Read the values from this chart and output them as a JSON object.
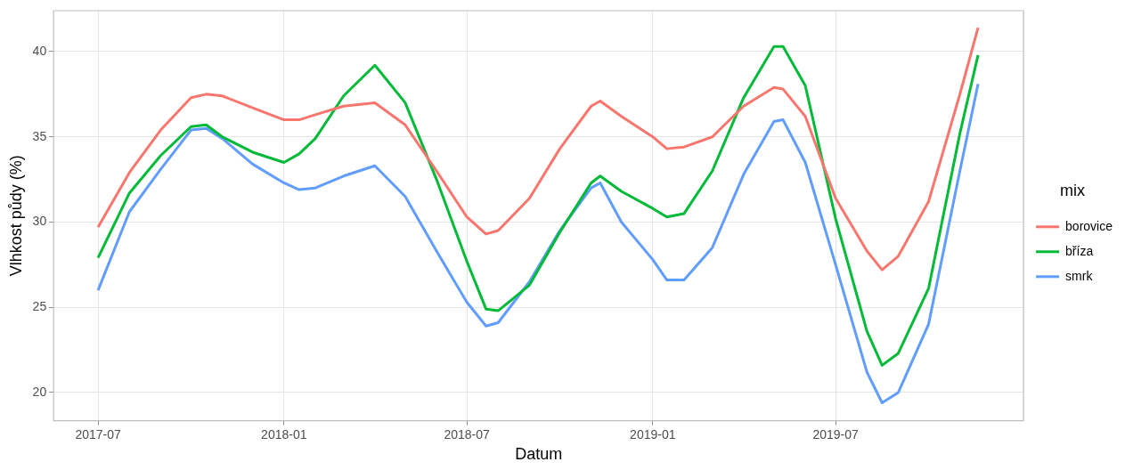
{
  "chart_data": {
    "type": "line",
    "xlabel": "Datum",
    "ylabel": "Vlhkost půdy (%)",
    "legend_title": "mix",
    "legend": "right",
    "grid": true,
    "marker": "none",
    "line_style": "solid",
    "x": [
      "2017-07-01",
      "2017-08-01",
      "2017-09-01",
      "2017-10-01",
      "2017-10-16",
      "2017-11-01",
      "2017-12-01",
      "2018-01-01",
      "2018-01-16",
      "2018-02-01",
      "2018-03-01",
      "2018-04-01",
      "2018-05-01",
      "2018-06-01",
      "2018-07-01",
      "2018-07-20",
      "2018-08-01",
      "2018-09-01",
      "2018-10-01",
      "2018-11-01",
      "2018-11-10",
      "2018-12-01",
      "2019-01-01",
      "2019-01-15",
      "2019-02-01",
      "2019-03-01",
      "2019-04-01",
      "2019-05-01",
      "2019-05-10",
      "2019-06-01",
      "2019-07-01",
      "2019-08-01",
      "2019-08-16",
      "2019-09-01",
      "2019-10-01",
      "2019-11-01",
      "2019-11-19"
    ],
    "xlim": [
      "2017-05-18",
      "2020-01-03"
    ],
    "xticks": [
      "2017-07",
      "2018-01",
      "2018-07",
      "2019-01",
      "2019-07"
    ],
    "ylim": [
      18.35,
      42.4
    ],
    "yticks": [
      20,
      25,
      30,
      35,
      40
    ],
    "series": [
      {
        "name": "borovice",
        "color": "#f8766d",
        "values": [
          29.7,
          32.9,
          35.4,
          37.3,
          37.5,
          37.4,
          36.7,
          36.0,
          36.0,
          36.3,
          36.8,
          37.0,
          35.7,
          33.0,
          30.3,
          29.3,
          29.5,
          31.4,
          34.3,
          36.8,
          37.1,
          36.2,
          35.0,
          34.3,
          34.4,
          35.0,
          36.8,
          37.9,
          37.8,
          36.2,
          31.4,
          28.3,
          27.2,
          28.0,
          31.2,
          37.5,
          41.4
        ]
      },
      {
        "name": "bříza",
        "color": "#00ba38",
        "values": [
          27.9,
          31.7,
          33.9,
          35.6,
          35.7,
          35.0,
          34.1,
          33.5,
          34.0,
          34.9,
          37.4,
          39.2,
          37.0,
          32.5,
          27.7,
          24.9,
          24.8,
          26.3,
          29.4,
          32.3,
          32.7,
          31.8,
          30.8,
          30.3,
          30.5,
          33.0,
          37.3,
          40.3,
          40.3,
          38.0,
          30.2,
          23.6,
          21.6,
          22.3,
          26.1,
          35.2,
          39.8
        ]
      },
      {
        "name": "smrk",
        "color": "#619cff",
        "values": [
          26.0,
          30.6,
          33.1,
          35.4,
          35.5,
          34.9,
          33.4,
          32.3,
          31.9,
          32.0,
          32.7,
          33.3,
          31.5,
          28.3,
          25.3,
          23.9,
          24.1,
          26.5,
          29.5,
          32.0,
          32.3,
          30.0,
          27.8,
          26.6,
          26.6,
          28.5,
          32.8,
          35.9,
          36.0,
          33.5,
          27.5,
          21.2,
          19.4,
          20.0,
          24.0,
          33.0,
          38.1
        ]
      }
    ]
  }
}
